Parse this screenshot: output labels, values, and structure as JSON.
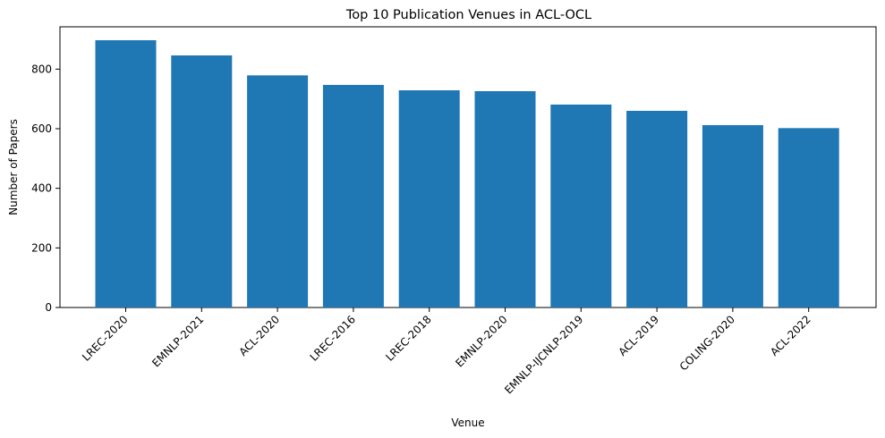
{
  "chart_data": {
    "type": "bar",
    "title": "Top 10 Publication Venues in ACL-OCL",
    "xlabel": "Venue",
    "ylabel": "Number of Papers",
    "categories": [
      "LREC-2020",
      "EMNLP-2021",
      "ACL-2020",
      "LREC-2016",
      "LREC-2018",
      "EMNLP-2020",
      "EMNLP-IJCNLP-2019",
      "ACL-2019",
      "COLING-2020",
      "ACL-2022"
    ],
    "values": [
      897,
      846,
      779,
      747,
      729,
      726,
      681,
      660,
      612,
      602
    ],
    "ylim": [
      0,
      942
    ],
    "yticks": [
      0,
      200,
      400,
      600,
      800
    ],
    "grid": false,
    "bar_color": "#1f77b4",
    "xtick_rotation_deg": 45
  }
}
